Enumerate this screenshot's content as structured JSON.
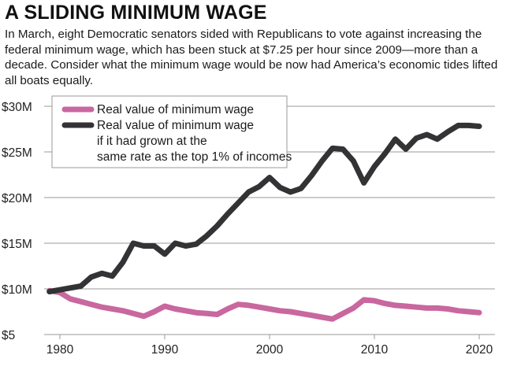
{
  "header": {
    "title": "A SLIDING MINIMUM WAGE",
    "subtitle": "In March, eight Democratic senators sided with Republicans to vote against increasing the federal minimum wage, which has been stuck at $7.25 per hour since 2009—more than a decade. Consider what the minimum wage would be now had America’s economic tides lifted all boats equally."
  },
  "colors": {
    "real_value": "#c9679f",
    "top_one_percent": "#333336",
    "grid": "#9a9a9a"
  },
  "chart_data": {
    "type": "line",
    "title": "A SLIDING MINIMUM WAGE",
    "xlabel": "",
    "ylabel": "",
    "xlim": [
      1978.5,
      2021.5
    ],
    "ylim": [
      5,
      30
    ],
    "x_ticks": [
      1980,
      1990,
      2000,
      2010,
      2020
    ],
    "y_ticks": [
      5,
      10,
      15,
      20,
      25,
      30
    ],
    "y_tick_labels": [
      "$5",
      "$10M",
      "$15M",
      "$20M",
      "$25M",
      "$30M"
    ],
    "grid": true,
    "legend_position": "top-left",
    "x": [
      1979,
      1980,
      1981,
      1982,
      1983,
      1984,
      1985,
      1986,
      1987,
      1988,
      1989,
      1990,
      1991,
      1992,
      1993,
      1994,
      1995,
      1996,
      1997,
      1998,
      1999,
      2000,
      2001,
      2002,
      2003,
      2004,
      2005,
      2006,
      2007,
      2008,
      2009,
      2010,
      2011,
      2012,
      2013,
      2014,
      2015,
      2016,
      2017,
      2018,
      2019,
      2020
    ],
    "series": [
      {
        "name": "Real value of minimum wage",
        "values": [
          9.8,
          9.6,
          8.9,
          8.6,
          8.3,
          8.0,
          7.8,
          7.6,
          7.3,
          7.0,
          7.5,
          8.1,
          7.8,
          7.6,
          7.4,
          7.3,
          7.2,
          7.8,
          8.3,
          8.2,
          8.0,
          7.8,
          7.6,
          7.5,
          7.3,
          7.1,
          6.9,
          6.7,
          7.3,
          7.9,
          8.8,
          8.7,
          8.4,
          8.2,
          8.1,
          8.0,
          7.9,
          7.9,
          7.8,
          7.6,
          7.5,
          7.4
        ]
      },
      {
        "name": "Real value of minimum wage if it had grown at the same rate as the top 1% of incomes",
        "values": [
          9.7,
          9.9,
          10.1,
          10.3,
          11.3,
          11.7,
          11.4,
          12.9,
          15.0,
          14.7,
          14.7,
          13.8,
          15.0,
          14.7,
          14.9,
          15.8,
          16.9,
          18.2,
          19.4,
          20.6,
          21.2,
          22.2,
          21.1,
          20.6,
          21.0,
          22.4,
          24.0,
          25.4,
          25.3,
          24.0,
          21.6,
          23.4,
          24.8,
          26.4,
          25.3,
          26.5,
          26.9,
          26.4,
          27.2,
          27.9,
          27.9,
          27.8
        ]
      }
    ]
  }
}
